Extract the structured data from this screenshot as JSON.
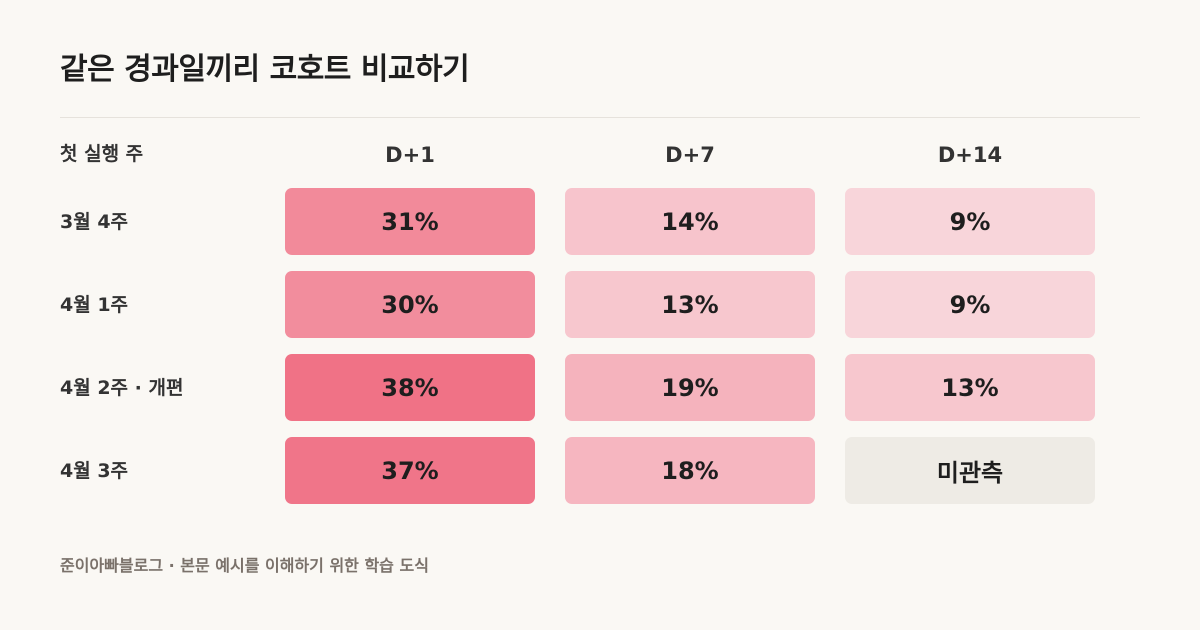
{
  "title": "같은 경과일끼리 코호트 비교하기",
  "footer": "준이아빠블로그 · 본문 예시를 이해하기 위한 학습 도식",
  "chart_data": {
    "type": "heatmap",
    "title": "같은 경과일끼리 코호트 비교하기",
    "row_axis_label": "첫 실행 주",
    "columns": [
      "D+1",
      "D+7",
      "D+14"
    ],
    "rows": [
      {
        "label": "3월 4주",
        "values": [
          31,
          14,
          9
        ],
        "display": [
          "31%",
          "14%",
          "9%"
        ]
      },
      {
        "label": "4월 1주",
        "values": [
          30,
          13,
          9
        ],
        "display": [
          "30%",
          "13%",
          "9%"
        ]
      },
      {
        "label": "4월 2주 · 개편",
        "values": [
          38,
          19,
          13
        ],
        "display": [
          "38%",
          "19%",
          "13%"
        ]
      },
      {
        "label": "4월 3주",
        "values": [
          37,
          18,
          null
        ],
        "display": [
          "37%",
          "18%",
          "미관측"
        ]
      }
    ],
    "unit": "%",
    "missing_label": "미관측",
    "colors": {
      "high": "#f07286",
      "low": "#f8d5da",
      "missing": "#eeebe5"
    }
  }
}
